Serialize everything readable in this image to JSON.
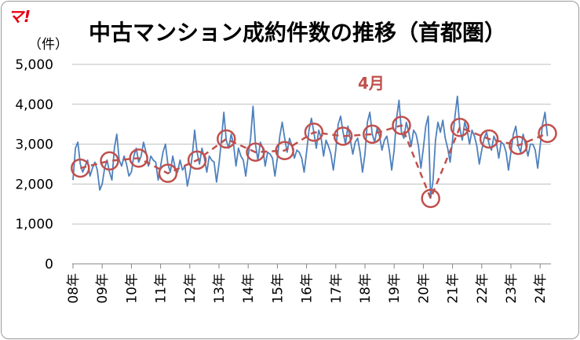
{
  "logo_text": "マ!",
  "chart_data": {
    "type": "line",
    "title": "中古マンション成約件数の推移（首都圏）",
    "ylabel": "（件）",
    "ylim": [
      0,
      5000
    ],
    "yticks": [
      "0",
      "1,000",
      "2,000",
      "3,000",
      "4,000",
      "5,000"
    ],
    "xticks": [
      "08年",
      "09年",
      "10年",
      "11年",
      "12年",
      "13年",
      "14年",
      "15年",
      "16年",
      "17年",
      "18年",
      "19年",
      "20年",
      "21年",
      "22年",
      "23年",
      "24年"
    ],
    "grid": true,
    "annotation": "4月",
    "monthly": [
      2100,
      2900,
      3050,
      2500,
      2300,
      2450,
      2600,
      2200,
      2400,
      2550,
      2350,
      1850,
      2000,
      2400,
      2600,
      2300,
      2100,
      2900,
      3250,
      2600,
      2450,
      2700,
      2500,
      2200,
      2300,
      2700,
      2900,
      2550,
      2700,
      3050,
      2800,
      2450,
      2700,
      2600,
      2550,
      2100,
      2450,
      2800,
      3000,
      2500,
      2300,
      2700,
      2400,
      2300,
      2600,
      2350,
      2450,
      1950,
      2250,
      2700,
      3350,
      2800,
      2500,
      2900,
      2650,
      2300,
      2700,
      2600,
      2550,
      2050,
      2500,
      3100,
      3800,
      3100,
      2900,
      3250,
      3000,
      2450,
      2900,
      2700,
      2600,
      2200,
      2700,
      3150,
      3950,
      3000,
      2600,
      3050,
      2900,
      2450,
      2800,
      2750,
      2650,
      2200,
      2650,
      3200,
      3550,
      3150,
      2800,
      3150,
      2950,
      2650,
      2850,
      2800,
      2650,
      2300,
      2800,
      3350,
      3650,
      3300,
      2900,
      3350,
      3150,
      2700,
      3100,
      2950,
      2750,
      2350,
      2850,
      3500,
      3700,
      3300,
      3000,
      3450,
      3100,
      2750,
      3050,
      3150,
      2800,
      2300,
      2750,
      3550,
      3800,
      3250,
      3050,
      3400,
      3200,
      2850,
      3100,
      3200,
      2850,
      2350,
      2850,
      3650,
      4100,
      3300,
      3150,
      3550,
      3300,
      2950,
      3350,
      3250,
      2950,
      2400,
      2900,
      3450,
      3700,
      1650,
      2100,
      3100,
      3550,
      3300,
      3600,
      3150,
      2900,
      2550,
      3100,
      3700,
      4200,
      3400,
      3100,
      3550,
      3350,
      3000,
      3350,
      3200,
      2950,
      2500,
      2850,
      3150,
      3300,
      3000,
      2850,
      3200,
      3050,
      2650,
      3050,
      3000,
      2800,
      2350,
      2800,
      3250,
      3450,
      2950,
      2800,
      3250,
      3000,
      2700,
      3000,
      3000,
      2850,
      2400,
      2950,
      3500,
      3800,
      3200
    ],
    "april": [
      2400,
      2580,
      2650,
      2270,
      2600,
      3130,
      2800,
      2840,
      3300,
      3200,
      3250,
      3470,
      1640,
      3420,
      3130,
      2970,
      3270
    ]
  }
}
